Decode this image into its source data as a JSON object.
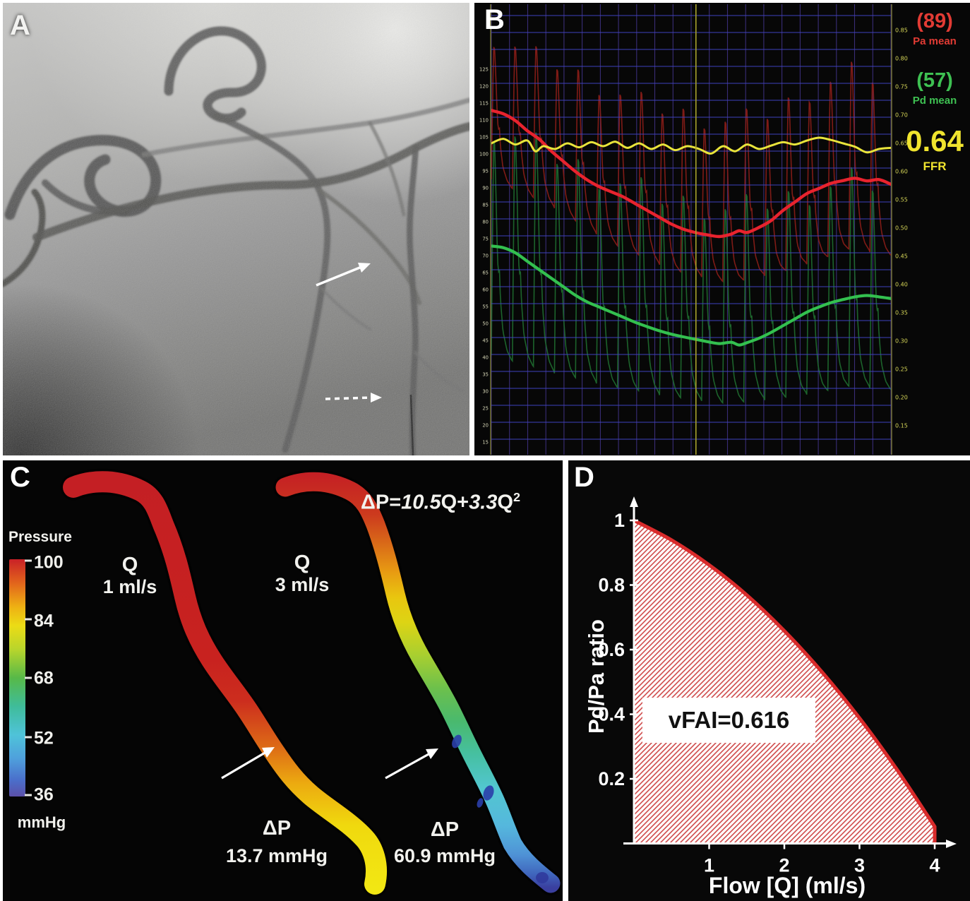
{
  "panels": {
    "a": {
      "label": "A",
      "arrows": [
        "solid-arrow",
        "dashed-arrow"
      ]
    },
    "b": {
      "label": "B",
      "readouts": {
        "pa_value": "(89)",
        "pa_label": "Pa mean",
        "pa_color": "#e23b34",
        "pd_value": "(57)",
        "pd_label": "Pd mean",
        "pd_color": "#3ec152",
        "ffr_value": "0.64",
        "ffr_label": "FFR",
        "ffr_color": "#f0e42e"
      }
    },
    "c": {
      "label": "C",
      "colorbar": {
        "title": "Pressure",
        "tick_labels": [
          "100",
          "84",
          "68",
          "52",
          "36"
        ],
        "unit": "mmHg",
        "stops": [
          [
            0,
            "#c92127"
          ],
          [
            0.1,
            "#e2641c"
          ],
          [
            0.2,
            "#eeb013"
          ],
          [
            0.28,
            "#ecdc15"
          ],
          [
            0.38,
            "#b8d52c"
          ],
          [
            0.5,
            "#57b948"
          ],
          [
            0.62,
            "#3fbc9a"
          ],
          [
            0.74,
            "#4fc3d9"
          ],
          [
            0.84,
            "#4fa0dc"
          ],
          [
            0.93,
            "#4a6fcb"
          ],
          [
            1,
            "#5b50a9"
          ]
        ]
      },
      "equation": {
        "lhs": "ΔP=",
        "coef1": "10.5",
        "mid": "Q+",
        "coef2": "3.3",
        "var2": "Q",
        "exp": "2"
      },
      "vessel1": {
        "q_label": "Q",
        "q_value": "1 ml/s",
        "dp_label": "ΔP",
        "dp_value": "13.7 mmHg"
      },
      "vessel2": {
        "q_label": "Q",
        "q_value": "3 ml/s",
        "dp_label": "ΔP",
        "dp_value": "60.9 mmHg"
      }
    },
    "d": {
      "label": "D",
      "annotation": "vFAI=0.616",
      "ylabel": "Pd/Pa ratio",
      "xlabel": "Flow [Q] (ml/s)"
    }
  },
  "chart_data": [
    {
      "id": "ffr-pressure-tracing",
      "type": "line",
      "left_axis": {
        "min": 15,
        "max": 125,
        "step": 5,
        "labels": [
          "125",
          "120",
          "115",
          "110",
          "105",
          "100",
          "95",
          "90",
          "85",
          "80",
          "75",
          "70",
          "65",
          "60",
          "55",
          "50",
          "45",
          "40",
          "35",
          "30",
          "25",
          "20",
          "15"
        ]
      },
      "right_axis": {
        "min": 0.15,
        "max": 0.85,
        "step": 0.05,
        "labels": [
          "0.85",
          "0.80",
          "0.75",
          "0.70",
          "0.65",
          "0.60",
          "0.55",
          "0.50",
          "0.45",
          "0.40",
          "0.35",
          "0.30",
          "0.25",
          "0.20",
          "0.15"
        ]
      },
      "beats": 19,
      "cursor_frac": 0.512,
      "readouts": {
        "pa_mean": 89,
        "pd_mean": 57,
        "ffr": 0.64
      },
      "series": {
        "pa_mean": [
          [
            0,
            112
          ],
          [
            0.03,
            111
          ],
          [
            0.06,
            109
          ],
          [
            0.09,
            106
          ],
          [
            0.12,
            103.5
          ],
          [
            0.15,
            100
          ],
          [
            0.18,
            97
          ],
          [
            0.21,
            94
          ],
          [
            0.24,
            91.5
          ],
          [
            0.27,
            89.5
          ],
          [
            0.3,
            88
          ],
          [
            0.33,
            86.5
          ],
          [
            0.36,
            84.5
          ],
          [
            0.39,
            82.5
          ],
          [
            0.42,
            80.5
          ],
          [
            0.45,
            78.5
          ],
          [
            0.48,
            77
          ],
          [
            0.51,
            76
          ],
          [
            0.54,
            75.3
          ],
          [
            0.57,
            74.8
          ],
          [
            0.6,
            75.5
          ],
          [
            0.62,
            76.5
          ],
          [
            0.64,
            76
          ],
          [
            0.67,
            77.5
          ],
          [
            0.7,
            79.5
          ],
          [
            0.73,
            82.5
          ],
          [
            0.76,
            85
          ],
          [
            0.79,
            87.5
          ],
          [
            0.82,
            89
          ],
          [
            0.85,
            90.5
          ],
          [
            0.88,
            91.3
          ],
          [
            0.91,
            92
          ],
          [
            0.94,
            91.2
          ],
          [
            0.97,
            91.6
          ],
          [
            1,
            90.2
          ]
        ],
        "pd_mean": [
          [
            0,
            72
          ],
          [
            0.03,
            71.5
          ],
          [
            0.06,
            70
          ],
          [
            0.09,
            67.5
          ],
          [
            0.12,
            65
          ],
          [
            0.15,
            62.5
          ],
          [
            0.18,
            60
          ],
          [
            0.21,
            57.5
          ],
          [
            0.24,
            55.5
          ],
          [
            0.27,
            54
          ],
          [
            0.3,
            52.5
          ],
          [
            0.33,
            51
          ],
          [
            0.36,
            49.5
          ],
          [
            0.39,
            48.2
          ],
          [
            0.42,
            47
          ],
          [
            0.45,
            46
          ],
          [
            0.48,
            45.2
          ],
          [
            0.51,
            44.5
          ],
          [
            0.54,
            43.8
          ],
          [
            0.57,
            43.2
          ],
          [
            0.6,
            43.6
          ],
          [
            0.62,
            42.8
          ],
          [
            0.64,
            43.5
          ],
          [
            0.67,
            44.8
          ],
          [
            0.7,
            46.5
          ],
          [
            0.73,
            48.5
          ],
          [
            0.76,
            50.5
          ],
          [
            0.79,
            52.5
          ],
          [
            0.82,
            54
          ],
          [
            0.85,
            55.3
          ],
          [
            0.88,
            56.2
          ],
          [
            0.91,
            57
          ],
          [
            0.94,
            57.4
          ],
          [
            0.97,
            57
          ],
          [
            1,
            56.5
          ]
        ],
        "pdpa_ratio": [
          [
            0,
            0.65
          ],
          [
            0.03,
            0.658
          ],
          [
            0.06,
            0.648
          ],
          [
            0.09,
            0.655
          ],
          [
            0.11,
            0.636
          ],
          [
            0.13,
            0.645
          ],
          [
            0.16,
            0.64
          ],
          [
            0.19,
            0.65
          ],
          [
            0.22,
            0.643
          ],
          [
            0.25,
            0.652
          ],
          [
            0.28,
            0.645
          ],
          [
            0.31,
            0.653
          ],
          [
            0.34,
            0.642
          ],
          [
            0.37,
            0.65
          ],
          [
            0.4,
            0.64
          ],
          [
            0.43,
            0.648
          ],
          [
            0.46,
            0.638
          ],
          [
            0.49,
            0.645
          ],
          [
            0.52,
            0.64
          ],
          [
            0.55,
            0.632
          ],
          [
            0.58,
            0.645
          ],
          [
            0.61,
            0.636
          ],
          [
            0.64,
            0.648
          ],
          [
            0.67,
            0.64
          ],
          [
            0.7,
            0.646
          ],
          [
            0.73,
            0.652
          ],
          [
            0.76,
            0.648
          ],
          [
            0.79,
            0.655
          ],
          [
            0.82,
            0.66
          ],
          [
            0.85,
            0.656
          ],
          [
            0.88,
            0.65
          ],
          [
            0.91,
            0.644
          ],
          [
            0.94,
            0.634
          ],
          [
            0.97,
            0.64
          ],
          [
            1,
            0.642
          ]
        ],
        "pa_phasic": {
          "sys": [
            [
              0,
              137
            ],
            [
              0.1,
              132
            ],
            [
              0.2,
              127
            ],
            [
              0.3,
              121
            ],
            [
              0.4,
              117
            ],
            [
              0.5,
              114
            ],
            [
              0.6,
              112
            ],
            [
              0.7,
              115
            ],
            [
              0.8,
              122
            ],
            [
              0.9,
              127
            ],
            [
              1,
              125
            ]
          ],
          "dia": [
            [
              0,
              90
            ],
            [
              0.15,
              82
            ],
            [
              0.3,
              71
            ],
            [
              0.45,
              63
            ],
            [
              0.6,
              59
            ],
            [
              0.75,
              63
            ],
            [
              0.9,
              69
            ],
            [
              1,
              67
            ]
          ]
        },
        "pd_phasic": {
          "sys": [
            [
              0,
              113
            ],
            [
              0.15,
              104
            ],
            [
              0.3,
              96
            ],
            [
              0.45,
              90
            ],
            [
              0.6,
              87
            ],
            [
              0.75,
              91
            ],
            [
              0.9,
              96
            ],
            [
              1,
              94
            ]
          ],
          "dia": [
            [
              0,
              37
            ],
            [
              0.15,
              32
            ],
            [
              0.3,
              28
            ],
            [
              0.45,
              25
            ],
            [
              0.6,
              23
            ],
            [
              0.75,
              25
            ],
            [
              0.9,
              28
            ],
            [
              1,
              27
            ]
          ]
        }
      },
      "beat_shape": [
        [
          0,
          0.04
        ],
        [
          0.05,
          0.5
        ],
        [
          0.1,
          0.95
        ],
        [
          0.14,
          1
        ],
        [
          0.2,
          0.82
        ],
        [
          0.27,
          0.55
        ],
        [
          0.33,
          0.38
        ],
        [
          0.37,
          0.46
        ],
        [
          0.43,
          0.3
        ],
        [
          0.55,
          0.16
        ],
        [
          0.75,
          0.08
        ],
        [
          1,
          0.04
        ]
      ],
      "colors": {
        "bg": "#070707",
        "grid_h": "#4042c4",
        "grid_v": "#463794",
        "pa_mean": "#e8232e",
        "pd_mean": "#33c04f",
        "ratio": "#e9e43b",
        "pa_phasic": "#8a1d18",
        "pd_phasic": "#1e6b2f",
        "cursor": "#a8a22c",
        "border": "#8a8a32",
        "left_labels": "#d6d6b6",
        "right_labels": "#d8d858"
      }
    },
    {
      "id": "vfai-flow-curve",
      "type": "area",
      "x": [
        0,
        0.5,
        1,
        1.5,
        2,
        2.5,
        3,
        3.5,
        4
      ],
      "y": [
        1.0,
        0.939,
        0.862,
        0.769,
        0.658,
        0.531,
        0.388,
        0.228,
        0.052
      ],
      "xlabel": "Flow [Q] (ml/s)",
      "ylabel": "Pd/Pa ratio",
      "xticks": [
        "1",
        "2",
        "3",
        "4"
      ],
      "yticks": [
        "1",
        "0.8",
        "0.6",
        "0.4",
        "0.2"
      ],
      "xlim": [
        0,
        4.35
      ],
      "ylim": [
        0,
        1.08
      ],
      "annotation": "vFAI=0.616",
      "colors": {
        "curve": "#d92b2b",
        "hatch": "#d04b4b",
        "area_bg": "#ffffff",
        "axis": "#ffffff",
        "bg": "#080808"
      }
    }
  ]
}
